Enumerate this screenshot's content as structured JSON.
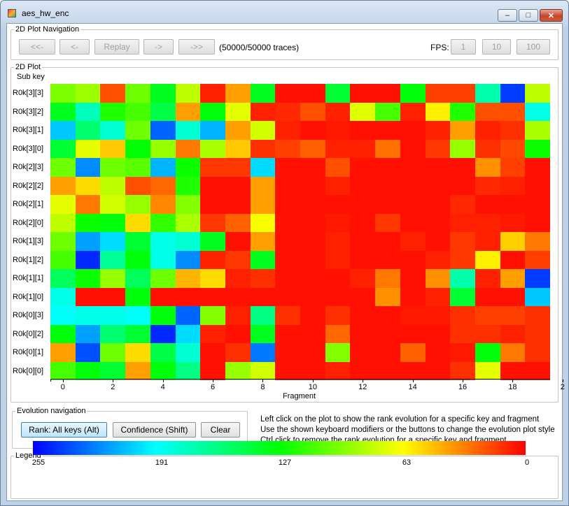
{
  "window": {
    "title": "aes_hw_enc"
  },
  "nav": {
    "group_label": "2D Plot Navigation",
    "buttons": [
      "<<-",
      "<-",
      "Replay",
      "->",
      "->>"
    ],
    "trace_status": "(50000/50000 traces)",
    "fps_label": "FPS:",
    "fps_buttons": [
      "1",
      "10",
      "100"
    ]
  },
  "plot": {
    "group_label": "2D Plot",
    "ylabel": "Sub key",
    "xlabel": "Fragment",
    "x_ticks": [
      "0",
      "2",
      "4",
      "6",
      "8",
      "10",
      "12",
      "14",
      "16",
      "18",
      "2"
    ]
  },
  "chart_data": {
    "type": "heatmap",
    "ylabel": "Sub key",
    "xlabel": "Fragment",
    "rows": [
      "R0k[3][3]",
      "R0k[3][2]",
      "R0k[3][1]",
      "R0k[3][0]",
      "R0k[2][3]",
      "R0k[2][2]",
      "R0k[2][1]",
      "R0k[2][0]",
      "R0k[1][3]",
      "R0k[1][2]",
      "R0k[1][1]",
      "R0k[1][0]",
      "R0k[0][3]",
      "R0k[0][2]",
      "R0k[0][1]",
      "R0k[0][0]"
    ],
    "columns": 20,
    "scale": {
      "min": 0,
      "max": 255,
      "low_color": "#ff0000",
      "high_color": "#0000ff"
    },
    "values": [
      [
        96,
        88,
        20,
        100,
        135,
        80,
        8,
        40,
        135,
        4,
        4,
        140,
        4,
        4,
        130,
        16,
        16,
        170,
        240,
        80
      ],
      [
        135,
        175,
        120,
        110,
        145,
        40,
        130,
        70,
        8,
        10,
        20,
        8,
        72,
        110,
        8,
        60,
        120,
        20,
        20,
        185
      ],
      [
        205,
        155,
        180,
        100,
        230,
        180,
        210,
        40,
        75,
        8,
        4,
        6,
        4,
        4,
        4,
        8,
        40,
        8,
        12,
        85
      ],
      [
        140,
        70,
        50,
        128,
        90,
        30,
        85,
        50,
        12,
        16,
        24,
        8,
        8,
        28,
        4,
        14,
        90,
        12,
        18,
        125
      ],
      [
        100,
        220,
        100,
        105,
        210,
        125,
        14,
        14,
        200,
        4,
        4,
        20,
        4,
        4,
        4,
        4,
        4,
        36,
        16,
        4
      ],
      [
        40,
        55,
        80,
        20,
        26,
        120,
        4,
        4,
        40,
        4,
        4,
        8,
        4,
        4,
        4,
        4,
        4,
        10,
        8,
        4
      ],
      [
        70,
        30,
        75,
        90,
        34,
        95,
        4,
        4,
        40,
        4,
        4,
        4,
        4,
        4,
        4,
        4,
        10,
        4,
        4,
        4
      ],
      [
        80,
        125,
        130,
        55,
        115,
        85,
        14,
        24,
        65,
        4,
        4,
        6,
        4,
        14,
        4,
        4,
        8,
        8,
        6,
        4
      ],
      [
        100,
        215,
        200,
        140,
        185,
        180,
        135,
        4,
        40,
        4,
        4,
        8,
        4,
        4,
        8,
        4,
        14,
        8,
        52,
        30
      ],
      [
        110,
        245,
        165,
        130,
        185,
        220,
        8,
        14,
        135,
        4,
        4,
        8,
        4,
        4,
        4,
        8,
        14,
        60,
        4,
        16
      ],
      [
        150,
        125,
        90,
        150,
        100,
        45,
        55,
        8,
        12,
        4,
        4,
        4,
        8,
        30,
        4,
        36,
        170,
        8,
        40,
        240
      ],
      [
        185,
        4,
        4,
        130,
        4,
        4,
        4,
        4,
        4,
        4,
        4,
        4,
        4,
        36,
        4,
        8,
        140,
        4,
        4,
        205
      ],
      [
        190,
        185,
        185,
        190,
        130,
        230,
        95,
        8,
        160,
        12,
        4,
        12,
        4,
        4,
        6,
        6,
        12,
        16,
        16,
        12
      ],
      [
        130,
        215,
        155,
        140,
        245,
        200,
        8,
        4,
        135,
        4,
        4,
        26,
        4,
        4,
        4,
        4,
        12,
        12,
        8,
        12
      ],
      [
        40,
        235,
        100,
        55,
        145,
        180,
        4,
        12,
        225,
        4,
        4,
        95,
        4,
        4,
        24,
        4,
        6,
        130,
        30,
        12
      ],
      [
        110,
        130,
        140,
        40,
        130,
        160,
        4,
        90,
        75,
        4,
        4,
        8,
        4,
        4,
        4,
        4,
        12,
        70,
        4,
        4
      ]
    ]
  },
  "evolution": {
    "group_label": "Evolution navigation",
    "rank_button": "Rank: All keys (Alt)",
    "confidence_button": "Confidence (Shift)",
    "clear_button": "Clear",
    "help": [
      "Left click on the plot to show the rank evolution for a specific key and fragment",
      "Use the shown keyboard modifiers or the buttons to change the evolution plot style",
      "Ctrl click to remove the rank evolution for a specific key and fragment"
    ]
  },
  "legend": {
    "group_label": "Legend",
    "ticks": [
      "255",
      "191",
      "127",
      "63",
      "0"
    ]
  },
  "colors": {
    "selected_button": "#bee6fd",
    "window_frame": "#c9d9ec"
  },
  "icons": [
    "app-icon",
    "minimize-icon",
    "maximize-icon",
    "close-icon"
  ]
}
